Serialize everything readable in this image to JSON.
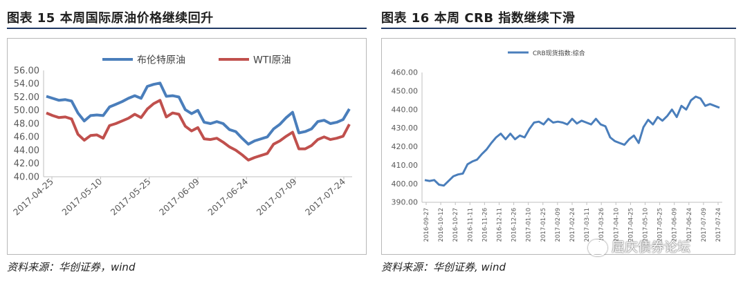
{
  "figures": [
    {
      "title": "图表 15   本周国际原油价格继续回升",
      "source": "资料来源：华创证券，wind"
    },
    {
      "title": "图表 16   本周 CRB 指数继续下滑",
      "source": "资料来源：华创证券, wind"
    }
  ],
  "watermark": "屈庆债券论坛",
  "chart_data": [
    {
      "type": "line",
      "ylim": [
        40,
        56
      ],
      "yticks": [
        "56.00",
        "54.00",
        "52.00",
        "50.00",
        "48.00",
        "46.00",
        "44.00",
        "42.00",
        "40.00"
      ],
      "xticks": [
        "2017-04-25",
        "2017-05-10",
        "2017-05-25",
        "2017-06-09",
        "2017-06-24",
        "2017-07-09",
        "2017-07-24"
      ],
      "legend_position": "top",
      "series": [
        {
          "name": "布伦特原油",
          "color": "#4a7ebb",
          "values": [
            52.1,
            51.8,
            51.5,
            51.6,
            51.4,
            49.6,
            48.4,
            49.2,
            49.3,
            49.2,
            50.5,
            50.9,
            51.3,
            51.8,
            52.2,
            51.8,
            53.6,
            53.9,
            54.1,
            52.1,
            52.2,
            52.0,
            50.1,
            49.5,
            50.0,
            48.2,
            48.0,
            48.3,
            48.0,
            47.1,
            46.8,
            45.8,
            44.9,
            45.4,
            45.7,
            46.0,
            47.2,
            47.9,
            48.9,
            49.7,
            46.6,
            46.8,
            47.2,
            48.3,
            48.5,
            48.0,
            48.2,
            48.6,
            50.2
          ]
        },
        {
          "name": "WTI原油",
          "color": "#c0504d",
          "values": [
            49.6,
            49.2,
            48.9,
            49.0,
            48.7,
            46.4,
            45.5,
            46.2,
            46.3,
            45.8,
            47.7,
            48.0,
            48.4,
            48.8,
            49.4,
            48.9,
            50.2,
            51.0,
            51.5,
            49.0,
            49.6,
            49.4,
            47.6,
            46.9,
            47.4,
            45.7,
            45.6,
            45.8,
            45.2,
            44.5,
            44.0,
            43.3,
            42.5,
            42.9,
            43.2,
            43.5,
            44.9,
            45.4,
            46.1,
            46.7,
            44.2,
            44.2,
            44.7,
            45.6,
            46.0,
            45.6,
            45.8,
            46.1,
            47.9
          ]
        }
      ]
    },
    {
      "type": "line",
      "ylim": [
        390,
        460
      ],
      "yticks": [
        "460.00",
        "450.00",
        "440.00",
        "430.00",
        "420.00",
        "410.00",
        "400.00",
        "390.00"
      ],
      "xticks": [
        "2016-09-27",
        "2016-10-12",
        "2016-10-27",
        "2016-11-11",
        "2016-11-26",
        "2016-12-11",
        "2016-12-26",
        "2017-01-10",
        "2017-01-25",
        "2017-02-09",
        "2017-02-24",
        "2017-03-11",
        "2017-03-26",
        "2017-04-10",
        "2017-04-25",
        "2017-05-10",
        "2017-05-25",
        "2017-06-09",
        "2017-06-24",
        "2017-07-09",
        "2017-07-24"
      ],
      "legend_position": "top",
      "series": [
        {
          "name": "CRB现货指数:综合",
          "color": "#4a7ebb",
          "values": [
            402.0,
            401.5,
            402.0,
            399.5,
            399.0,
            401.5,
            404.0,
            405.0,
            405.5,
            410.5,
            412.0,
            413.0,
            416.0,
            418.5,
            422.0,
            425.0,
            427.0,
            424.0,
            427.0,
            424.0,
            426.0,
            425.0,
            429.5,
            433.0,
            433.5,
            432.0,
            435.0,
            433.0,
            433.5,
            433.0,
            432.0,
            435.0,
            432.5,
            434.0,
            433.0,
            432.0,
            435.0,
            432.0,
            431.0,
            425.0,
            423.0,
            422.0,
            421.0,
            424.0,
            426.0,
            422.0,
            430.5,
            434.5,
            432.0,
            436.0,
            434.0,
            436.5,
            440.0,
            436.0,
            442.0,
            440.0,
            445.0,
            447.0,
            446.0,
            442.0,
            443.0,
            442.0,
            441.0
          ]
        }
      ]
    }
  ]
}
